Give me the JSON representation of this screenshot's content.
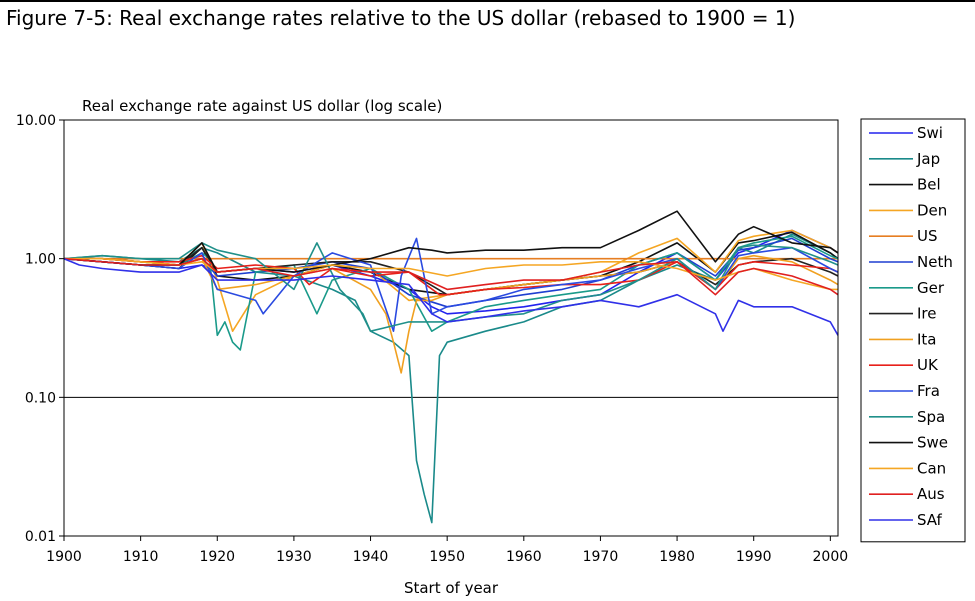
{
  "figure": {
    "title": "Figure 7-5: Real exchange rates relative to the US dollar (rebased to 1900 = 1)"
  },
  "chart_data": {
    "type": "line",
    "title": "Real exchange rate against US dollar (log scale)",
    "xlabel": "Start of year",
    "ylabel": "",
    "log_y": true,
    "xlim": [
      1900,
      2001
    ],
    "ylim": [
      0.01,
      10
    ],
    "x_ticks": [
      1900,
      1910,
      1920,
      1930,
      1940,
      1950,
      1960,
      1970,
      1980,
      1990,
      2000
    ],
    "y_ticks": [
      0.01,
      0.1,
      1,
      10
    ],
    "y_tick_labels": [
      "0.01",
      "0.10",
      "1.00",
      "10.00"
    ],
    "y_gridlines": [
      0.1,
      1
    ],
    "legend_position": "right",
    "series": [
      {
        "name": "Swi",
        "color": "#2222ee",
        "x": [
          1900,
          1905,
          1910,
          1915,
          1918,
          1920,
          1925,
          1930,
          1935,
          1940,
          1945,
          1948,
          1950,
          1955,
          1960,
          1965,
          1970,
          1975,
          1980,
          1985,
          1988,
          1990,
          1995,
          2000,
          2001
        ],
        "y": [
          1.0,
          0.95,
          0.9,
          0.85,
          0.9,
          0.8,
          0.85,
          0.8,
          0.9,
          0.75,
          0.6,
          0.45,
          0.4,
          0.42,
          0.45,
          0.5,
          0.55,
          0.8,
          1.1,
          0.7,
          1.1,
          1.2,
          1.6,
          1.2,
          1.1
        ]
      },
      {
        "name": "Jap",
        "color": "#1a8a8a",
        "x": [
          1900,
          1905,
          1910,
          1915,
          1918,
          1920,
          1925,
          1930,
          1935,
          1938,
          1940,
          1943,
          1945,
          1946,
          1947,
          1948,
          1949,
          1950,
          1955,
          1960,
          1965,
          1970,
          1975,
          1980,
          1985,
          1988,
          1990,
          1995,
          2000,
          2001
        ],
        "y": [
          1.0,
          1.05,
          1.0,
          0.95,
          1.2,
          1.1,
          0.8,
          0.75,
          0.6,
          0.5,
          0.3,
          0.25,
          0.2,
          0.035,
          0.02,
          0.0125,
          0.2,
          0.25,
          0.3,
          0.35,
          0.45,
          0.5,
          0.7,
          0.9,
          0.7,
          1.2,
          1.1,
          1.5,
          1.1,
          1.0
        ]
      },
      {
        "name": "Bel",
        "color": "#111111",
        "x": [
          1900,
          1905,
          1910,
          1915,
          1918,
          1920,
          1925,
          1930,
          1935,
          1940,
          1945,
          1950,
          1955,
          1960,
          1965,
          1970,
          1975,
          1980,
          1985,
          1988,
          1990,
          1995,
          2000,
          2001
        ],
        "y": [
          1.0,
          0.95,
          0.9,
          0.85,
          1.2,
          0.75,
          0.7,
          0.75,
          0.9,
          0.8,
          0.6,
          0.55,
          0.6,
          0.65,
          0.7,
          0.75,
          0.95,
          1.3,
          0.8,
          1.3,
          1.35,
          1.55,
          1.1,
          1.0
        ]
      },
      {
        "name": "Den",
        "color": "#f5a623",
        "x": [
          1900,
          1905,
          1910,
          1915,
          1918,
          1920,
          1922,
          1925,
          1930,
          1935,
          1940,
          1945,
          1950,
          1955,
          1960,
          1965,
          1970,
          1975,
          1980,
          1985,
          1988,
          1990,
          1995,
          2000,
          2001
        ],
        "y": [
          1.0,
          1.0,
          0.95,
          0.9,
          1.3,
          0.7,
          0.3,
          0.55,
          0.75,
          0.9,
          0.85,
          0.5,
          0.55,
          0.6,
          0.65,
          0.7,
          0.8,
          1.1,
          1.4,
          0.8,
          1.35,
          1.45,
          1.6,
          1.2,
          1.1
        ]
      },
      {
        "name": "US",
        "color": "#e67e22",
        "x": [
          1900,
          2001
        ],
        "y": [
          1.0,
          1.0
        ]
      },
      {
        "name": "Neth",
        "color": "#1f3fd0",
        "x": [
          1900,
          1905,
          1910,
          1915,
          1918,
          1920,
          1925,
          1930,
          1935,
          1940,
          1945,
          1950,
          1955,
          1960,
          1965,
          1970,
          1975,
          1980,
          1985,
          1988,
          1990,
          1995,
          2000,
          2001
        ],
        "y": [
          1.0,
          0.95,
          0.9,
          0.9,
          1.0,
          0.75,
          0.8,
          0.85,
          0.95,
          0.85,
          0.55,
          0.45,
          0.5,
          0.55,
          0.6,
          0.7,
          0.9,
          1.1,
          0.75,
          1.15,
          1.2,
          1.4,
          1.0,
          0.95
        ]
      },
      {
        "name": "Ger",
        "color": "#1a9a8a",
        "x": [
          1900,
          1905,
          1910,
          1915,
          1918,
          1919,
          1920,
          1921,
          1922,
          1923,
          1925,
          1930,
          1933,
          1935,
          1940,
          1945,
          1948,
          1950,
          1955,
          1960,
          1965,
          1970,
          1975,
          1980,
          1985,
          1988,
          1990,
          1995,
          2000,
          2001
        ],
        "y": [
          1.0,
          1.0,
          0.95,
          0.9,
          1.1,
          1.0,
          0.28,
          0.35,
          0.25,
          0.22,
          0.8,
          0.9,
          0.4,
          0.7,
          0.85,
          0.6,
          0.3,
          0.35,
          0.45,
          0.5,
          0.55,
          0.6,
          0.9,
          1.1,
          0.7,
          1.2,
          1.3,
          1.45,
          1.05,
          1.0
        ]
      },
      {
        "name": "Ire",
        "color": "#222222",
        "x": [
          1900,
          1905,
          1910,
          1915,
          1918,
          1920,
          1925,
          1930,
          1935,
          1940,
          1945,
          1950,
          1955,
          1960,
          1965,
          1970,
          1975,
          1980,
          1985,
          1988,
          1990,
          1995,
          2000,
          2001
        ],
        "y": [
          1.0,
          1.0,
          0.95,
          0.9,
          1.2,
          0.8,
          0.85,
          0.9,
          0.95,
          0.95,
          0.8,
          0.55,
          0.6,
          0.65,
          0.7,
          0.75,
          0.8,
          0.95,
          0.65,
          0.9,
          0.95,
          1.0,
          0.8,
          0.75
        ]
      },
      {
        "name": "Ita",
        "color": "#f0a020",
        "x": [
          1900,
          1905,
          1910,
          1915,
          1918,
          1920,
          1925,
          1930,
          1935,
          1940,
          1942,
          1943,
          1944,
          1945,
          1946,
          1948,
          1950,
          1955,
          1960,
          1965,
          1970,
          1975,
          1980,
          1985,
          1988,
          1990,
          1995,
          2000,
          2001
        ],
        "y": [
          1.0,
          1.0,
          0.95,
          0.9,
          1.0,
          0.6,
          0.65,
          0.75,
          0.85,
          0.6,
          0.4,
          0.25,
          0.15,
          0.3,
          0.5,
          0.5,
          0.55,
          0.6,
          0.65,
          0.7,
          0.75,
          0.8,
          0.95,
          0.6,
          1.0,
          1.05,
          0.95,
          0.7,
          0.65
        ]
      },
      {
        "name": "UK",
        "color": "#e8201a",
        "x": [
          1900,
          1905,
          1910,
          1915,
          1918,
          1920,
          1925,
          1930,
          1932,
          1935,
          1940,
          1945,
          1949,
          1950,
          1955,
          1960,
          1965,
          1970,
          1975,
          1980,
          1985,
          1988,
          1990,
          1995,
          2000,
          2001
        ],
        "y": [
          1.0,
          1.0,
          0.95,
          0.95,
          1.05,
          0.85,
          0.9,
          0.85,
          0.65,
          0.85,
          0.75,
          0.8,
          0.55,
          0.55,
          0.6,
          0.62,
          0.65,
          0.65,
          0.7,
          0.95,
          0.6,
          0.9,
          0.95,
          0.9,
          0.85,
          0.8
        ]
      },
      {
        "name": "Fra",
        "color": "#2a4ae0",
        "x": [
          1900,
          1905,
          1910,
          1915,
          1918,
          1920,
          1925,
          1926,
          1930,
          1935,
          1940,
          1943,
          1944,
          1946,
          1948,
          1950,
          1955,
          1960,
          1965,
          1970,
          1975,
          1980,
          1985,
          1988,
          1990,
          1995,
          2000,
          2001
        ],
        "y": [
          1.0,
          0.95,
          0.9,
          0.85,
          1.1,
          0.6,
          0.5,
          0.4,
          0.75,
          1.1,
          0.9,
          0.3,
          0.75,
          1.4,
          0.4,
          0.45,
          0.5,
          0.6,
          0.65,
          0.7,
          0.85,
          1.0,
          0.6,
          1.05,
          1.1,
          1.2,
          0.85,
          0.8
        ]
      },
      {
        "name": "Spa",
        "color": "#20908a",
        "x": [
          1900,
          1905,
          1910,
          1915,
          1918,
          1920,
          1925,
          1930,
          1933,
          1936,
          1939,
          1940,
          1945,
          1950,
          1955,
          1960,
          1965,
          1970,
          1975,
          1980,
          1985,
          1988,
          1990,
          1995,
          2000,
          2001
        ],
        "y": [
          1.0,
          1.05,
          1.0,
          1.0,
          1.3,
          1.15,
          1.0,
          0.6,
          1.3,
          0.6,
          0.4,
          0.3,
          0.35,
          0.35,
          0.38,
          0.4,
          0.5,
          0.55,
          0.7,
          1.0,
          0.6,
          1.2,
          1.25,
          1.2,
          0.95,
          0.9
        ]
      },
      {
        "name": "Swe",
        "color": "#111111",
        "x": [
          1900,
          1905,
          1910,
          1915,
          1918,
          1920,
          1925,
          1930,
          1935,
          1940,
          1945,
          1948,
          1950,
          1955,
          1960,
          1965,
          1970,
          1975,
          1980,
          1985,
          1988,
          1990,
          1995,
          2000,
          2001
        ],
        "y": [
          1.0,
          0.95,
          0.9,
          0.9,
          1.3,
          0.8,
          0.85,
          0.8,
          0.9,
          1.0,
          1.2,
          1.15,
          1.1,
          1.15,
          1.15,
          1.2,
          1.2,
          1.6,
          2.2,
          0.95,
          1.5,
          1.7,
          1.3,
          1.2,
          1.1
        ]
      },
      {
        "name": "Can",
        "color": "#f5a623",
        "x": [
          1900,
          1905,
          1910,
          1915,
          1918,
          1920,
          1925,
          1930,
          1935,
          1940,
          1945,
          1950,
          1955,
          1960,
          1965,
          1970,
          1975,
          1980,
          1985,
          1988,
          1990,
          1995,
          2000,
          2001
        ],
        "y": [
          1.0,
          1.0,
          0.95,
          0.9,
          0.95,
          0.8,
          0.85,
          0.85,
          0.9,
          0.85,
          0.85,
          0.75,
          0.85,
          0.9,
          0.9,
          0.95,
          0.95,
          0.85,
          0.7,
          0.8,
          0.85,
          0.7,
          0.6,
          0.6
        ]
      },
      {
        "name": "Aus",
        "color": "#e02020",
        "x": [
          1900,
          1905,
          1910,
          1915,
          1918,
          1920,
          1925,
          1930,
          1935,
          1940,
          1945,
          1950,
          1955,
          1960,
          1965,
          1970,
          1975,
          1980,
          1985,
          1988,
          1990,
          1995,
          2000,
          2001
        ],
        "y": [
          1.0,
          0.95,
          0.9,
          0.9,
          1.0,
          0.8,
          0.85,
          0.75,
          0.85,
          0.8,
          0.8,
          0.6,
          0.65,
          0.7,
          0.7,
          0.8,
          0.9,
          0.95,
          0.55,
          0.8,
          0.85,
          0.75,
          0.6,
          0.55
        ]
      },
      {
        "name": "SAf",
        "color": "#3030e8",
        "x": [
          1900,
          1902,
          1905,
          1910,
          1915,
          1918,
          1920,
          1925,
          1930,
          1935,
          1940,
          1945,
          1948,
          1950,
          1955,
          1960,
          1965,
          1970,
          1975,
          1980,
          1985,
          1986,
          1988,
          1990,
          1995,
          2000,
          2001
        ],
        "y": [
          1.0,
          0.9,
          0.85,
          0.8,
          0.8,
          0.9,
          0.7,
          0.7,
          0.7,
          0.75,
          0.7,
          0.65,
          0.4,
          0.35,
          0.38,
          0.42,
          0.45,
          0.5,
          0.45,
          0.55,
          0.4,
          0.3,
          0.5,
          0.45,
          0.45,
          0.35,
          0.28
        ]
      }
    ]
  }
}
